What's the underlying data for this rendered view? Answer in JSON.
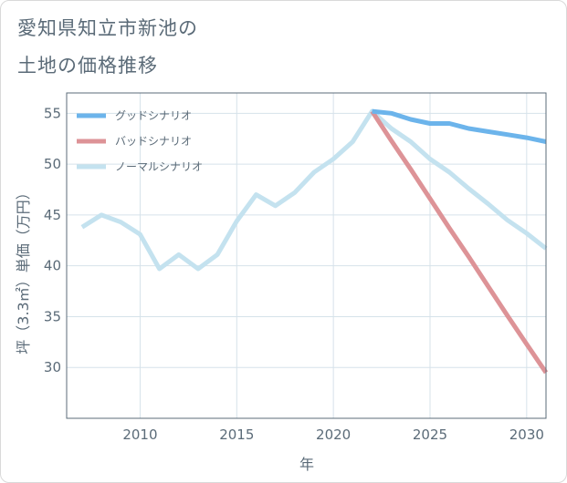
{
  "title": {
    "line1": "愛知県知立市新池の",
    "line2": "土地の価格推移"
  },
  "chart_data": {
    "type": "line",
    "xlabel": "年",
    "ylabel": "坪（3.3㎡）単価（万円）",
    "xlim": [
      2006.2,
      2031
    ],
    "ylim": [
      25,
      57
    ],
    "x_ticks": [
      2010,
      2015,
      2020,
      2025,
      2030
    ],
    "y_ticks": [
      30,
      35,
      40,
      45,
      50,
      55
    ],
    "grid": true,
    "legend_position": "top-left",
    "series": [
      {
        "name": "グッドシナリオ",
        "color": "#6cb4eb",
        "x": [
          2022,
          2023,
          2024,
          2025,
          2026,
          2027,
          2028,
          2029,
          2030,
          2031
        ],
        "y": [
          55.2,
          55.0,
          54.4,
          54.0,
          54.0,
          53.5,
          53.2,
          52.9,
          52.6,
          52.2
        ]
      },
      {
        "name": "バッドシナリオ",
        "color": "#dd9397",
        "x": [
          2022,
          2023,
          2024,
          2025,
          2026,
          2027,
          2028,
          2029,
          2030,
          2031
        ],
        "y": [
          55.2,
          52.3,
          49.5,
          46.6,
          43.7,
          40.9,
          38.0,
          35.1,
          32.3,
          29.5
        ]
      },
      {
        "name": "ノーマルシナリオ",
        "color": "#c4e2ef",
        "x": [
          2007,
          2008,
          2009,
          2010,
          2011,
          2012,
          2013,
          2014,
          2015,
          2016,
          2017,
          2018,
          2019,
          2020,
          2021,
          2022,
          2023,
          2024,
          2025,
          2026,
          2027,
          2028,
          2029,
          2030,
          2031
        ],
        "y": [
          43.8,
          45.0,
          44.3,
          43.1,
          39.7,
          41.1,
          39.7,
          41.1,
          44.4,
          47.0,
          45.9,
          47.2,
          49.2,
          50.5,
          52.2,
          55.2,
          53.5,
          52.2,
          50.5,
          49.2,
          47.6,
          46.1,
          44.5,
          43.2,
          41.7
        ]
      }
    ]
  }
}
